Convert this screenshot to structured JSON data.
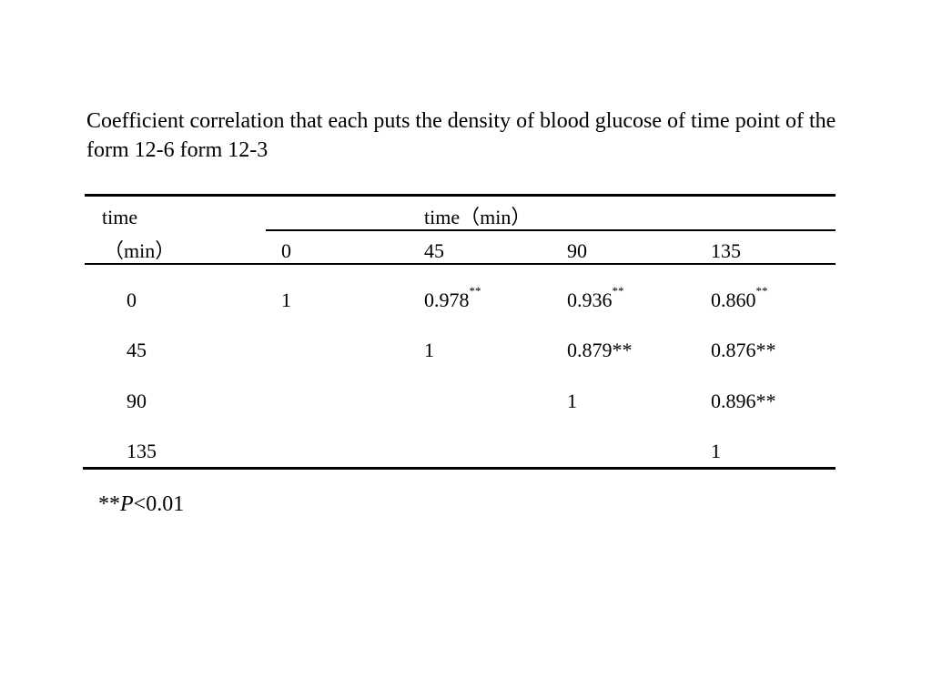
{
  "caption": "Coefficient correlation that each puts the density of blood glucose of time point of the form 12-6 form 12-3",
  "table": {
    "row_header_line1": "time",
    "row_header_line2": "（min）",
    "column_group_label": "time（min）",
    "columns": [
      "0",
      "45",
      "90",
      "135"
    ],
    "rows": [
      {
        "label": "0",
        "cells": [
          {
            "value": "1",
            "sup": ""
          },
          {
            "value": "0.978",
            "sup": "**"
          },
          {
            "value": "0.936",
            "sup": "**"
          },
          {
            "value": "0.860",
            "sup": "**"
          }
        ]
      },
      {
        "label": "45",
        "cells": [
          {
            "value": "",
            "sup": ""
          },
          {
            "value": "1",
            "sup": ""
          },
          {
            "value": "0.879**",
            "sup": ""
          },
          {
            "value": "0.876**",
            "sup": ""
          }
        ]
      },
      {
        "label": "90",
        "cells": [
          {
            "value": "",
            "sup": ""
          },
          {
            "value": "",
            "sup": ""
          },
          {
            "value": "1",
            "sup": ""
          },
          {
            "value": "0.896**",
            "sup": ""
          }
        ]
      },
      {
        "label": "135",
        "cells": [
          {
            "value": "",
            "sup": ""
          },
          {
            "value": "",
            "sup": ""
          },
          {
            "value": "",
            "sup": ""
          },
          {
            "value": "1",
            "sup": ""
          }
        ]
      }
    ]
  },
  "footnote": {
    "prefix": "**",
    "symbol": "P",
    "suffix": "<0.01"
  }
}
